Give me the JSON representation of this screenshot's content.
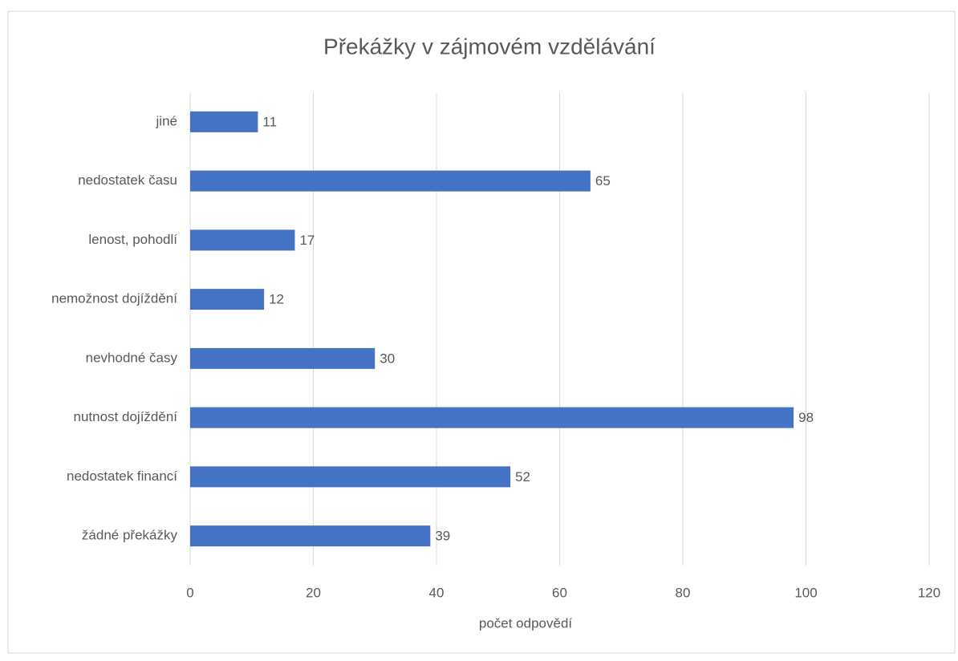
{
  "chart_data": {
    "type": "bar",
    "orientation": "horizontal",
    "title": "Překážky v zájmovém vzdělávání",
    "x_label": "počet odpovědí",
    "categories": [
      "jiné",
      "nedostatek času",
      "lenost, pohodlí",
      "nemožnost dojíždění",
      "nevhodné časy",
      "nutnost dojíždění",
      "nedostatek financí",
      "žádné překážky"
    ],
    "values": [
      11,
      65,
      17,
      12,
      30,
      98,
      52,
      39
    ],
    "color": "#4472c4",
    "xlim": [
      0,
      120
    ],
    "xticks": [
      0,
      20,
      40,
      60,
      80,
      100,
      120
    ],
    "grid": true
  }
}
